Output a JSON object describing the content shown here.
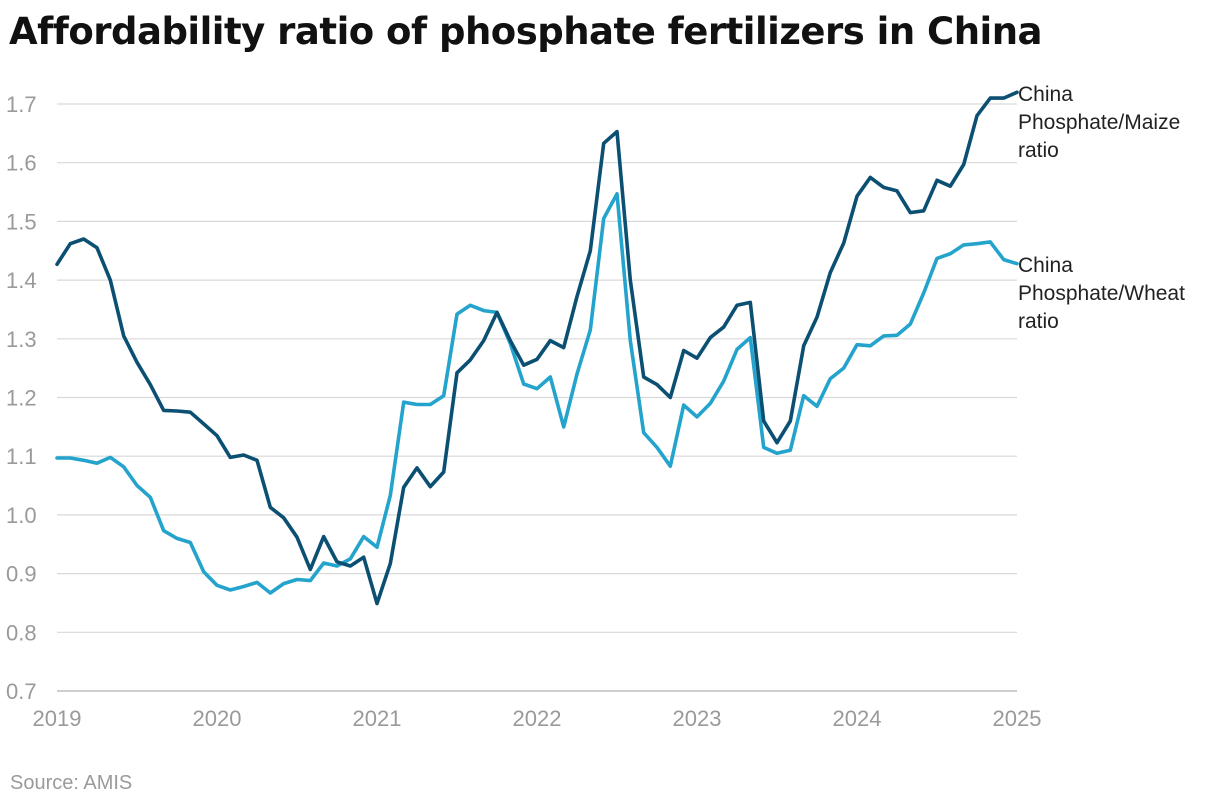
{
  "title": "Affordability ratio of phosphate fertilizers in China",
  "source": "Source: AMIS",
  "colors": {
    "maize": "#0b4f73",
    "wheat": "#24a3cc",
    "grid": "#d9d9d9",
    "axis_text": "#9a9a9a"
  },
  "chart_data": {
    "type": "line",
    "title": "Affordability ratio of phosphate fertilizers in China",
    "xlabel": "",
    "ylabel": "",
    "xlim": [
      2019.0,
      2025.0
    ],
    "ylim": [
      0.7,
      1.7
    ],
    "y_ticks": [
      "0.7",
      "0.8",
      "0.9",
      "1.0",
      "1.1",
      "1.2",
      "1.3",
      "1.4",
      "1.5",
      "1.6",
      "1.7"
    ],
    "x_ticks": [
      "2019",
      "2020",
      "2021",
      "2022",
      "2023",
      "2024",
      "2025"
    ],
    "series": [
      {
        "name": "China Phosphate/Maize ratio",
        "label_lines": [
          "China",
          "Phosphate/Maize",
          "ratio"
        ],
        "color": "#0b4f73",
        "x": [
          2019.0,
          2019.083,
          2019.167,
          2019.25,
          2019.333,
          2019.417,
          2019.5,
          2019.583,
          2019.667,
          2019.75,
          2019.833,
          2019.917,
          2020.0,
          2020.083,
          2020.167,
          2020.25,
          2020.333,
          2020.417,
          2020.5,
          2020.583,
          2020.667,
          2020.75,
          2020.833,
          2020.917,
          2021.0,
          2021.083,
          2021.167,
          2021.25,
          2021.333,
          2021.417,
          2021.5,
          2021.583,
          2021.667,
          2021.75,
          2021.833,
          2021.917,
          2022.0,
          2022.083,
          2022.167,
          2022.25,
          2022.333,
          2022.417,
          2022.5,
          2022.583,
          2022.667,
          2022.75,
          2022.833,
          2022.917,
          2023.0,
          2023.083,
          2023.167,
          2023.25,
          2023.333,
          2023.417,
          2023.5,
          2023.583,
          2023.667,
          2023.75,
          2023.833,
          2023.917,
          2024.0,
          2024.083,
          2024.167,
          2024.25,
          2024.333,
          2024.417,
          2024.5,
          2024.583,
          2024.667,
          2024.75,
          2024.833,
          2024.917,
          2025.0
        ],
        "values": [
          1.427,
          1.462,
          1.47,
          1.455,
          1.4,
          1.305,
          1.26,
          1.222,
          1.178,
          1.177,
          1.175,
          1.155,
          1.135,
          1.098,
          1.102,
          1.093,
          1.013,
          0.995,
          0.962,
          0.907,
          0.963,
          0.92,
          0.913,
          0.928,
          0.849,
          0.917,
          1.047,
          1.08,
          1.048,
          1.073,
          1.242,
          1.264,
          1.297,
          1.345,
          1.297,
          1.255,
          1.265,
          1.297,
          1.285,
          1.372,
          1.45,
          1.633,
          1.653,
          1.4,
          1.235,
          1.222,
          1.2,
          1.28,
          1.267,
          1.302,
          1.32,
          1.357,
          1.362,
          1.16,
          1.123,
          1.16,
          1.288,
          1.337,
          1.413,
          1.463,
          1.543,
          1.575,
          1.558,
          1.552,
          1.515,
          1.518,
          1.57,
          1.56,
          1.597,
          1.68,
          1.71,
          1.71,
          1.72
        ]
      },
      {
        "name": "China Phosphate/Wheat ratio",
        "label_lines": [
          "China",
          "Phosphate/Wheat",
          "ratio"
        ],
        "color": "#24a3cc",
        "x": [
          2019.0,
          2019.083,
          2019.167,
          2019.25,
          2019.333,
          2019.417,
          2019.5,
          2019.583,
          2019.667,
          2019.75,
          2019.833,
          2019.917,
          2020.0,
          2020.083,
          2020.167,
          2020.25,
          2020.333,
          2020.417,
          2020.5,
          2020.583,
          2020.667,
          2020.75,
          2020.833,
          2020.917,
          2021.0,
          2021.083,
          2021.167,
          2021.25,
          2021.333,
          2021.417,
          2021.5,
          2021.583,
          2021.667,
          2021.75,
          2021.833,
          2021.917,
          2022.0,
          2022.083,
          2022.167,
          2022.25,
          2022.333,
          2022.417,
          2022.5,
          2022.583,
          2022.667,
          2022.75,
          2022.833,
          2022.917,
          2023.0,
          2023.083,
          2023.167,
          2023.25,
          2023.333,
          2023.417,
          2023.5,
          2023.583,
          2023.667,
          2023.75,
          2023.833,
          2023.917,
          2024.0,
          2024.083,
          2024.167,
          2024.25,
          2024.333,
          2024.417,
          2024.5,
          2024.583,
          2024.667,
          2024.75,
          2024.833,
          2024.917,
          2025.0
        ],
        "values": [
          1.097,
          1.097,
          1.093,
          1.088,
          1.098,
          1.082,
          1.05,
          1.03,
          0.973,
          0.96,
          0.953,
          0.903,
          0.88,
          0.872,
          0.878,
          0.885,
          0.867,
          0.883,
          0.89,
          0.888,
          0.918,
          0.913,
          0.925,
          0.963,
          0.945,
          1.033,
          1.192,
          1.188,
          1.188,
          1.203,
          1.342,
          1.357,
          1.348,
          1.345,
          1.292,
          1.223,
          1.215,
          1.235,
          1.15,
          1.24,
          1.315,
          1.505,
          1.547,
          1.297,
          1.14,
          1.115,
          1.083,
          1.187,
          1.167,
          1.19,
          1.228,
          1.282,
          1.302,
          1.115,
          1.105,
          1.11,
          1.203,
          1.185,
          1.232,
          1.25,
          1.29,
          1.288,
          1.305,
          1.306,
          1.325,
          1.378,
          1.437,
          1.445,
          1.46,
          1.462,
          1.465,
          1.435,
          1.428
        ]
      }
    ]
  }
}
